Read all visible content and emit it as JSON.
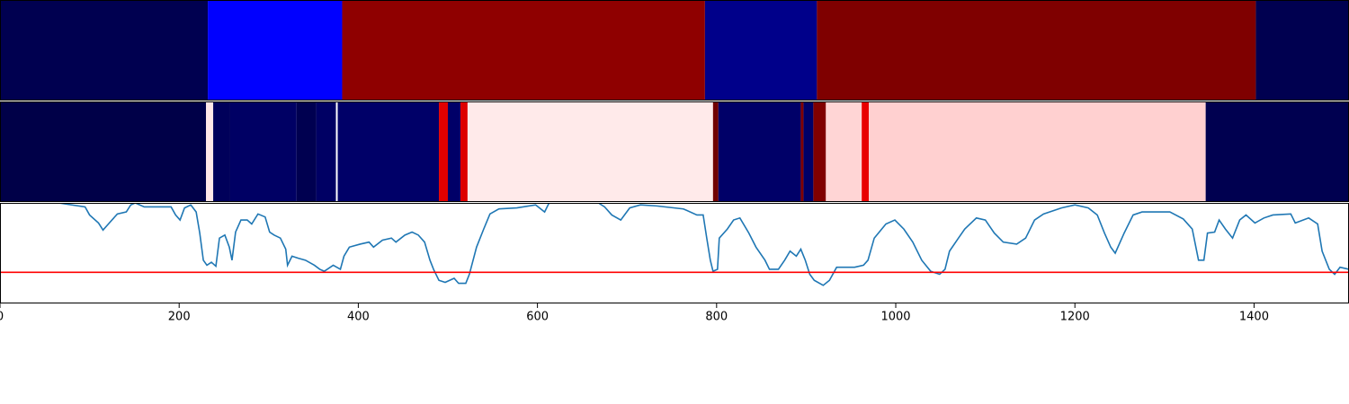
{
  "chart_data": [
    {
      "type": "segments",
      "xlim": [
        0,
        1506
      ],
      "edges": [
        0,
        232,
        382,
        787,
        912,
        1402,
        1506
      ],
      "colors": [
        "#000050",
        "#0000ff",
        "#8f0000",
        "#00008a",
        "#7f0000",
        "#000050"
      ]
    },
    {
      "type": "segments",
      "xlim": [
        0,
        1506
      ],
      "edges": [
        0,
        230,
        238,
        257,
        331,
        353,
        375,
        377,
        490,
        500,
        514,
        522,
        796,
        802,
        894,
        897,
        908,
        922,
        962,
        970,
        1346,
        1506
      ],
      "colors": [
        "#000048",
        "#ffe8e8",
        "#00005a",
        "#000064",
        "#000050",
        "#000064",
        "#ffffff",
        "#000068",
        "#e00000",
        "#000068",
        "#dd0000",
        "#ffeaea",
        "#700000",
        "#000068",
        "#800000",
        "#000068",
        "#800000",
        "#ffd5d5",
        "#e80000",
        "#ffd0d0",
        "#000050"
      ]
    },
    {
      "type": "line",
      "xlim": [
        0,
        1506
      ],
      "ylim": [
        0,
        1
      ],
      "xticks": [
        0,
        200,
        400,
        600,
        800,
        1000,
        1200,
        1400
      ],
      "color": "#1f77b4",
      "threshold": 0.31,
      "threshold_color": "#ff0000",
      "x": [
        65,
        95,
        100,
        110,
        115,
        121,
        131,
        141,
        146,
        151,
        161,
        171,
        191,
        196,
        201,
        206,
        213,
        219,
        223,
        227,
        231,
        236,
        241,
        245,
        251,
        256,
        259,
        263,
        269,
        276,
        281,
        288,
        296,
        301,
        306,
        313,
        319,
        321,
        326,
        333,
        341,
        351,
        357,
        362,
        372,
        380,
        384,
        390,
        402,
        412,
        417,
        427,
        437,
        442,
        452,
        460,
        467,
        474,
        480,
        484,
        490,
        497,
        507,
        512,
        520,
        524,
        532,
        540,
        547,
        557,
        577,
        598,
        608,
        613,
        643,
        668,
        675,
        683,
        693,
        703,
        715,
        733,
        763,
        778,
        785,
        789,
        793,
        796,
        801,
        803,
        812,
        819,
        826,
        836,
        844,
        854,
        859,
        869,
        876,
        882,
        889,
        894,
        899,
        904,
        909,
        919,
        926,
        934,
        944,
        954,
        964,
        969,
        976,
        989,
        999,
        1009,
        1019,
        1029,
        1039,
        1049,
        1055,
        1060,
        1070,
        1077,
        1090,
        1100,
        1110,
        1120,
        1135,
        1145,
        1155,
        1165,
        1185,
        1200,
        1215,
        1225,
        1233,
        1240,
        1245,
        1255,
        1265,
        1275,
        1306,
        1321,
        1331,
        1338,
        1344,
        1348,
        1356,
        1361,
        1368,
        1376,
        1384,
        1391,
        1401,
        1411,
        1421,
        1441,
        1446,
        1461,
        1471,
        1476,
        1484,
        1490,
        1496,
        1506
      ],
      "values": [
        1.0,
        0.96,
        0.88,
        0.8,
        0.73,
        0.79,
        0.89,
        0.91,
        0.98,
        1.0,
        0.96,
        0.96,
        0.96,
        0.88,
        0.83,
        0.95,
        0.98,
        0.91,
        0.7,
        0.43,
        0.38,
        0.41,
        0.37,
        0.65,
        0.68,
        0.56,
        0.43,
        0.71,
        0.83,
        0.83,
        0.79,
        0.89,
        0.86,
        0.71,
        0.68,
        0.65,
        0.54,
        0.38,
        0.47,
        0.45,
        0.43,
        0.38,
        0.34,
        0.32,
        0.38,
        0.34,
        0.47,
        0.56,
        0.59,
        0.61,
        0.56,
        0.63,
        0.65,
        0.61,
        0.68,
        0.71,
        0.68,
        0.61,
        0.43,
        0.34,
        0.23,
        0.21,
        0.25,
        0.2,
        0.2,
        0.29,
        0.56,
        0.74,
        0.89,
        0.94,
        0.95,
        0.98,
        0.91,
        1.0,
        1.01,
        1.0,
        0.96,
        0.88,
        0.83,
        0.95,
        0.98,
        0.97,
        0.94,
        0.88,
        0.88,
        0.65,
        0.43,
        0.32,
        0.34,
        0.65,
        0.74,
        0.83,
        0.85,
        0.7,
        0.56,
        0.43,
        0.34,
        0.34,
        0.43,
        0.52,
        0.47,
        0.54,
        0.43,
        0.29,
        0.23,
        0.18,
        0.23,
        0.36,
        0.36,
        0.36,
        0.38,
        0.43,
        0.65,
        0.79,
        0.83,
        0.74,
        0.61,
        0.43,
        0.32,
        0.29,
        0.34,
        0.52,
        0.65,
        0.74,
        0.85,
        0.83,
        0.7,
        0.61,
        0.59,
        0.65,
        0.83,
        0.89,
        0.95,
        0.98,
        0.95,
        0.88,
        0.7,
        0.56,
        0.5,
        0.7,
        0.88,
        0.91,
        0.91,
        0.84,
        0.74,
        0.43,
        0.43,
        0.7,
        0.71,
        0.83,
        0.74,
        0.65,
        0.83,
        0.88,
        0.8,
        0.85,
        0.88,
        0.89,
        0.8,
        0.85,
        0.79,
        0.52,
        0.34,
        0.29,
        0.36,
        0.34
      ]
    }
  ]
}
